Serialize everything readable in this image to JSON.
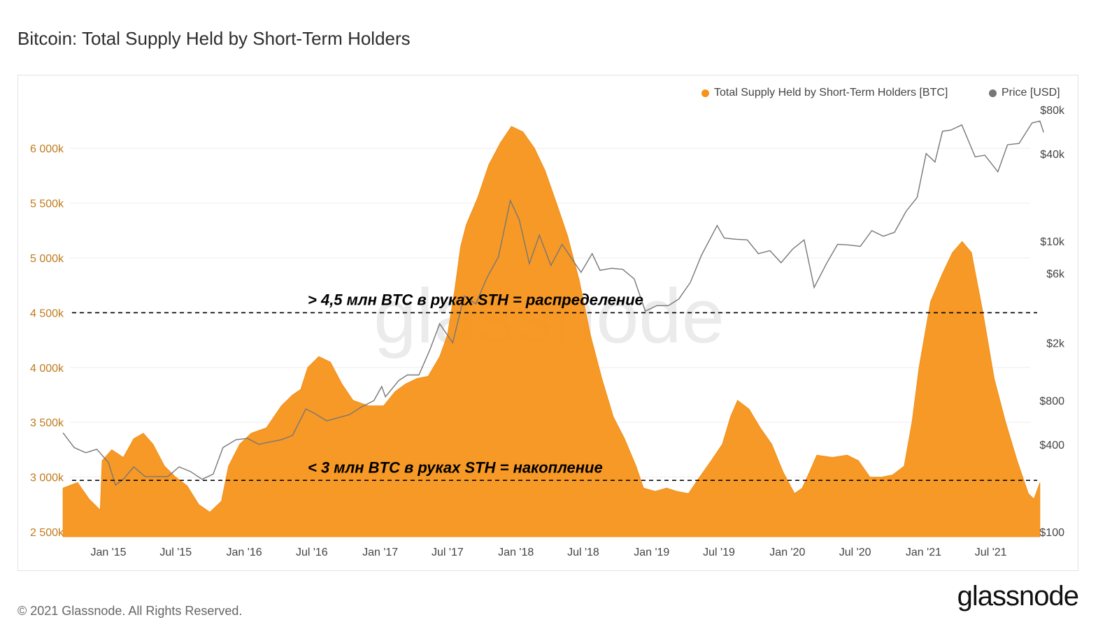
{
  "title": "Bitcoin: Total Supply Held by Short-Term Holders",
  "footer": "© 2021 Glassnode. All Rights Reserved.",
  "brand": "glassnode",
  "watermark": "glassnode",
  "colors": {
    "supply": "#f7931a",
    "price": "#777777",
    "supply_axis": "#c07b1c",
    "annotation": "#000000"
  },
  "legend": [
    {
      "label": "Total Supply Held by Short-Term Holders [BTC]",
      "color": "#f7931a"
    },
    {
      "label": "Price [USD]",
      "color": "#777777"
    }
  ],
  "chart_data": {
    "type": "area",
    "x_ticks": [
      "Jan '15",
      "Jul '15",
      "Jan '16",
      "Jul '16",
      "Jan '17",
      "Jul '17",
      "Jan '18",
      "Jul '18",
      "Jan '19",
      "Jul '19",
      "Jan '20",
      "Jul '20",
      "Jan '21",
      "Jul '21"
    ],
    "y_left": {
      "ticks": [
        "2 500k",
        "3 000k",
        "3 500k",
        "4 000k",
        "4 500k",
        "5 000k",
        "5 500k",
        "6 000k"
      ],
      "range": [
        2500000,
        6400000
      ]
    },
    "y_right": {
      "ticks": [
        "$100",
        "$400",
        "$800",
        "$2k",
        "$6k",
        "$10k",
        "$40k",
        "$80k"
      ],
      "scale": "log"
    },
    "series": [
      {
        "name": "Total Supply Held by Short-Term Holders [BTC]",
        "axis": "left",
        "points": [
          [
            "2014-09-01",
            2900000
          ],
          [
            "2014-10-10",
            2950000
          ],
          [
            "2014-11-10",
            2800000
          ],
          [
            "2014-12-10",
            2700000
          ],
          [
            "2014-12-15",
            3150000
          ],
          [
            "2015-01-10",
            3250000
          ],
          [
            "2015-02-10",
            3180000
          ],
          [
            "2015-03-10",
            3350000
          ],
          [
            "2015-04-05",
            3400000
          ],
          [
            "2015-05-01",
            3300000
          ],
          [
            "2015-06-01",
            3100000
          ],
          [
            "2015-07-01",
            3000000
          ],
          [
            "2015-08-01",
            2920000
          ],
          [
            "2015-09-01",
            2750000
          ],
          [
            "2015-10-01",
            2680000
          ],
          [
            "2015-11-01",
            2780000
          ],
          [
            "2015-11-20",
            3100000
          ],
          [
            "2015-12-20",
            3300000
          ],
          [
            "2016-01-20",
            3400000
          ],
          [
            "2016-03-01",
            3450000
          ],
          [
            "2016-04-10",
            3650000
          ],
          [
            "2016-05-10",
            3750000
          ],
          [
            "2016-06-01",
            3800000
          ],
          [
            "2016-06-20",
            4000000
          ],
          [
            "2016-07-20",
            4100000
          ],
          [
            "2016-08-20",
            4050000
          ],
          [
            "2016-09-20",
            3850000
          ],
          [
            "2016-10-20",
            3700000
          ],
          [
            "2016-12-01",
            3650000
          ],
          [
            "2017-01-10",
            3650000
          ],
          [
            "2017-02-10",
            3780000
          ],
          [
            "2017-03-10",
            3850000
          ],
          [
            "2017-04-10",
            3900000
          ],
          [
            "2017-05-10",
            3920000
          ],
          [
            "2017-06-10",
            4100000
          ],
          [
            "2017-07-01",
            4300000
          ],
          [
            "2017-07-20",
            4700000
          ],
          [
            "2017-08-05",
            5100000
          ],
          [
            "2017-08-20",
            5300000
          ],
          [
            "2017-09-20",
            5550000
          ],
          [
            "2017-10-20",
            5850000
          ],
          [
            "2017-11-20",
            6050000
          ],
          [
            "2017-12-20",
            6200000
          ],
          [
            "2018-01-20",
            6150000
          ],
          [
            "2018-02-20",
            6000000
          ],
          [
            "2018-03-20",
            5800000
          ],
          [
            "2018-04-20",
            5500000
          ],
          [
            "2018-05-20",
            5200000
          ],
          [
            "2018-06-20",
            4800000
          ],
          [
            "2018-07-20",
            4300000
          ],
          [
            "2018-08-20",
            3900000
          ],
          [
            "2018-09-20",
            3550000
          ],
          [
            "2018-10-20",
            3350000
          ],
          [
            "2018-11-20",
            3100000
          ],
          [
            "2018-12-10",
            2900000
          ],
          [
            "2019-01-10",
            2870000
          ],
          [
            "2019-02-10",
            2900000
          ],
          [
            "2019-03-10",
            2870000
          ],
          [
            "2019-04-10",
            2850000
          ],
          [
            "2019-05-10",
            3000000
          ],
          [
            "2019-06-10",
            3150000
          ],
          [
            "2019-07-10",
            3300000
          ],
          [
            "2019-08-01",
            3550000
          ],
          [
            "2019-08-20",
            3700000
          ],
          [
            "2019-09-20",
            3620000
          ],
          [
            "2019-10-20",
            3450000
          ],
          [
            "2019-11-20",
            3300000
          ],
          [
            "2019-12-20",
            3050000
          ],
          [
            "2020-01-20",
            2850000
          ],
          [
            "2020-02-10",
            2900000
          ],
          [
            "2020-03-01",
            3050000
          ],
          [
            "2020-03-20",
            3200000
          ],
          [
            "2020-05-01",
            3180000
          ],
          [
            "2020-06-10",
            3200000
          ],
          [
            "2020-07-10",
            3150000
          ],
          [
            "2020-08-10",
            3000000
          ],
          [
            "2020-09-10",
            3000000
          ],
          [
            "2020-10-10",
            3020000
          ],
          [
            "2020-11-10",
            3100000
          ],
          [
            "2020-12-01",
            3500000
          ],
          [
            "2020-12-20",
            4000000
          ],
          [
            "2021-01-20",
            4600000
          ],
          [
            "2021-02-20",
            4850000
          ],
          [
            "2021-03-20",
            5050000
          ],
          [
            "2021-04-15",
            5150000
          ],
          [
            "2021-05-10",
            5050000
          ],
          [
            "2021-06-10",
            4500000
          ],
          [
            "2021-07-10",
            3900000
          ],
          [
            "2021-08-10",
            3500000
          ],
          [
            "2021-09-10",
            3150000
          ],
          [
            "2021-10-10",
            2850000
          ],
          [
            "2021-10-25",
            2800000
          ],
          [
            "2021-11-10",
            2950000
          ]
        ]
      },
      {
        "name": "Price [USD]",
        "axis": "right",
        "points": [
          [
            "2014-09-01",
            480
          ],
          [
            "2014-10-01",
            380
          ],
          [
            "2014-11-01",
            350
          ],
          [
            "2014-12-01",
            370
          ],
          [
            "2015-01-01",
            300
          ],
          [
            "2015-01-20",
            210
          ],
          [
            "2015-02-10",
            230
          ],
          [
            "2015-03-10",
            280
          ],
          [
            "2015-04-10",
            240
          ],
          [
            "2015-05-10",
            240
          ],
          [
            "2015-06-10",
            240
          ],
          [
            "2015-07-10",
            280
          ],
          [
            "2015-08-10",
            260
          ],
          [
            "2015-09-10",
            230
          ],
          [
            "2015-10-10",
            250
          ],
          [
            "2015-11-05",
            380
          ],
          [
            "2015-12-10",
            430
          ],
          [
            "2016-01-10",
            440
          ],
          [
            "2016-02-10",
            400
          ],
          [
            "2016-03-10",
            415
          ],
          [
            "2016-04-10",
            430
          ],
          [
            "2016-05-10",
            460
          ],
          [
            "2016-06-15",
            700
          ],
          [
            "2016-07-10",
            650
          ],
          [
            "2016-08-10",
            580
          ],
          [
            "2016-09-10",
            610
          ],
          [
            "2016-10-10",
            640
          ],
          [
            "2016-11-10",
            720
          ],
          [
            "2016-12-15",
            800
          ],
          [
            "2017-01-05",
            1000
          ],
          [
            "2017-01-15",
            850
          ],
          [
            "2017-02-20",
            1100
          ],
          [
            "2017-03-15",
            1200
          ],
          [
            "2017-04-15",
            1200
          ],
          [
            "2017-05-15",
            1800
          ],
          [
            "2017-06-10",
            2700
          ],
          [
            "2017-07-15",
            2000
          ],
          [
            "2017-08-15",
            4200
          ],
          [
            "2017-09-15",
            3700
          ],
          [
            "2017-10-15",
            5600
          ],
          [
            "2017-11-15",
            7800
          ],
          [
            "2017-12-17",
            19000
          ],
          [
            "2018-01-10",
            14000
          ],
          [
            "2018-02-06",
            7000
          ],
          [
            "2018-03-05",
            11000
          ],
          [
            "2018-04-05",
            6800
          ],
          [
            "2018-05-05",
            9500
          ],
          [
            "2018-06-25",
            6100
          ],
          [
            "2018-07-25",
            8200
          ],
          [
            "2018-08-15",
            6300
          ],
          [
            "2018-09-15",
            6500
          ],
          [
            "2018-10-15",
            6400
          ],
          [
            "2018-11-15",
            5500
          ],
          [
            "2018-12-15",
            3300
          ],
          [
            "2019-01-15",
            3600
          ],
          [
            "2019-02-15",
            3600
          ],
          [
            "2019-03-15",
            4000
          ],
          [
            "2019-04-15",
            5200
          ],
          [
            "2019-05-15",
            8000
          ],
          [
            "2019-06-26",
            12800
          ],
          [
            "2019-07-15",
            10500
          ],
          [
            "2019-08-15",
            10300
          ],
          [
            "2019-09-15",
            10200
          ],
          [
            "2019-10-15",
            8200
          ],
          [
            "2019-11-15",
            8600
          ],
          [
            "2019-12-15",
            7100
          ],
          [
            "2020-01-15",
            8800
          ],
          [
            "2020-02-15",
            10200
          ],
          [
            "2020-03-13",
            4800
          ],
          [
            "2020-04-15",
            7000
          ],
          [
            "2020-05-15",
            9500
          ],
          [
            "2020-06-15",
            9400
          ],
          [
            "2020-07-15",
            9200
          ],
          [
            "2020-08-15",
            11800
          ],
          [
            "2020-09-15",
            10800
          ],
          [
            "2020-10-15",
            11500
          ],
          [
            "2020-11-15",
            16000
          ],
          [
            "2020-12-15",
            20000
          ],
          [
            "2021-01-08",
            40000
          ],
          [
            "2021-02-01",
            35000
          ],
          [
            "2021-02-21",
            57000
          ],
          [
            "2021-03-15",
            58000
          ],
          [
            "2021-04-14",
            63000
          ],
          [
            "2021-05-20",
            38000
          ],
          [
            "2021-06-15",
            39000
          ],
          [
            "2021-07-20",
            30000
          ],
          [
            "2021-08-15",
            46000
          ],
          [
            "2021-09-15",
            47000
          ],
          [
            "2021-10-20",
            65000
          ],
          [
            "2021-11-10",
            67000
          ],
          [
            "2021-11-20",
            56000
          ]
        ]
      }
    ],
    "annotations": [
      {
        "text": "> 4,5 млн BTC в руках STH = распределение",
        "level": 4500000
      },
      {
        "text": "< 3 млн BTC в руках STH = накопление",
        "level": 2970000
      }
    ]
  }
}
